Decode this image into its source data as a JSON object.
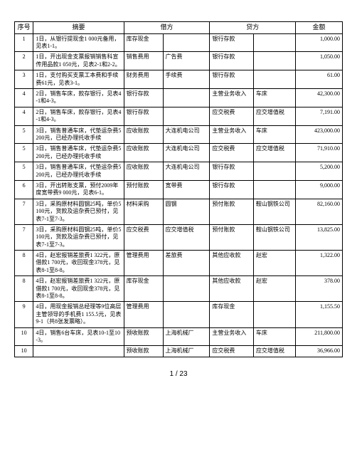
{
  "header": {
    "seq": "序号",
    "summary": "摘要",
    "debit": "借方",
    "credit": "贷方",
    "amount": "金额"
  },
  "font_sizes": {
    "head": 9,
    "cell": 8,
    "footer": 10
  },
  "rows": [
    {
      "seq": "1",
      "summary": "1日，从银行提现金1 000元备用，见表1-1。",
      "d1": "库存现金",
      "d2": "",
      "c1": "银行存款",
      "c2": "",
      "amount": "1,000.00"
    },
    {
      "seq": "2",
      "summary": "1日，开出现金支票报销销售科宣传用品款1 050元，见表2-1和2-2。",
      "d1": "销售费用",
      "d2": "广告费",
      "c1": "银行存款",
      "c2": "",
      "amount": "1,050.00"
    },
    {
      "seq": "3",
      "summary": "1日，支付购买支票工本费和手续费61元，见表3-1。",
      "d1": "财务费用",
      "d2": "手续费",
      "c1": "银行存款",
      "c2": "",
      "amount": "61.00"
    },
    {
      "seq": "4",
      "summary": "2日，销售车床，款存银行，见表4-1和4-3。",
      "d1": "银行存款",
      "d2": "",
      "c1": "主营业务收入",
      "c2": "车床",
      "amount": "42,300.00"
    },
    {
      "seq": "4",
      "summary": "2日，销售车床，款存银行，见表4-1和4-3。",
      "d1": "银行存款",
      "d2": "",
      "c1": "应交税费",
      "c2": "应交增值税",
      "amount": "7,191.00"
    },
    {
      "seq": "5",
      "summary": "3日，销售普通车床，代垫运杂费5 200元，已经办理托收手续",
      "d1": "应收账款",
      "d2": "大连机电公司",
      "c1": "主营业务收入",
      "c2": "车床",
      "amount": "423,000.00"
    },
    {
      "seq": "5",
      "summary": "3日，销售普通车床，代垫运杂费5 200元，已经办理托收手续",
      "d1": "应收账款",
      "d2": "大连机电公司",
      "c1": "应交税费",
      "c2": "应交增值税",
      "amount": "71,910.00"
    },
    {
      "seq": "5",
      "summary": "3日，销售普通车床，代垫运杂费5 200元，已经办理托收手续",
      "d1": "应收账款",
      "d2": "大连机电公司",
      "c1": "银行存款",
      "c2": "",
      "amount": "5,200.00"
    },
    {
      "seq": "6",
      "summary": "3日，开出转账支票，预付2009年度宽带费9 000元，见表6-1。",
      "d1": "预付账款",
      "d2": "宽带费",
      "c1": "银行存款",
      "c2": "",
      "amount": "9,000.00"
    },
    {
      "seq": "7",
      "summary": "3日，采购原材料圆钢25吨，单价5 100元，货款及运杂费已预付，见表7-1至7-3。",
      "d1": "材料采购",
      "d2": "圆钢",
      "c1": "预付账款",
      "c2": "鞍山钢铁公司",
      "amount": "82,160.00"
    },
    {
      "seq": "7",
      "summary": "3日，采购原材料圆钢25吨，单价5 100元，货款及运杂费已预付，见表7-1至7-3。",
      "d1": "应交税费",
      "d2": "应交增值税",
      "c1": "预付账款",
      "c2": "鞍山钢铁公司",
      "amount": "13,825.00"
    },
    {
      "seq": "8",
      "summary": "4日，赵宏报销差旅费1 322元，原借款1 700元，收回现金378元，见表8-1至8-8。",
      "d1": "管理费用",
      "d2": "差旅费",
      "c1": "其他应收款",
      "c2": "赵宏",
      "amount": "1,322.00"
    },
    {
      "seq": "8",
      "summary": "4日，赵宏报销差旅费1 322元，原借款1 700元，收回现金378元，见表8-1至8-8。",
      "d1": "库存现金",
      "d2": "",
      "c1": "其他应收款",
      "c2": "赵宏",
      "amount": "378.00"
    },
    {
      "seq": "9",
      "summary": "4日，用现金报销总经理等9位高层主管领导的手机费1 155.5元，见表9-1（共8张发票略）。",
      "d1": "管理费用",
      "d2": "",
      "c1": "库存现金",
      "c2": "",
      "amount": "1,155.50"
    },
    {
      "seq": "10",
      "summary": "4日，销售6台车床，见表10-1至10-3。",
      "d1": "预收账款",
      "d2": "上海机械厂",
      "c1": "主营业务收入",
      "c2": "车床",
      "amount": "211,800.00"
    },
    {
      "seq": "10",
      "summary": "",
      "d1": "预收账款",
      "d2": "上海机械厂",
      "c1": "应交税费",
      "c2": "应交增值税",
      "amount": "36,966.00"
    }
  ],
  "footer": "1 / 23"
}
